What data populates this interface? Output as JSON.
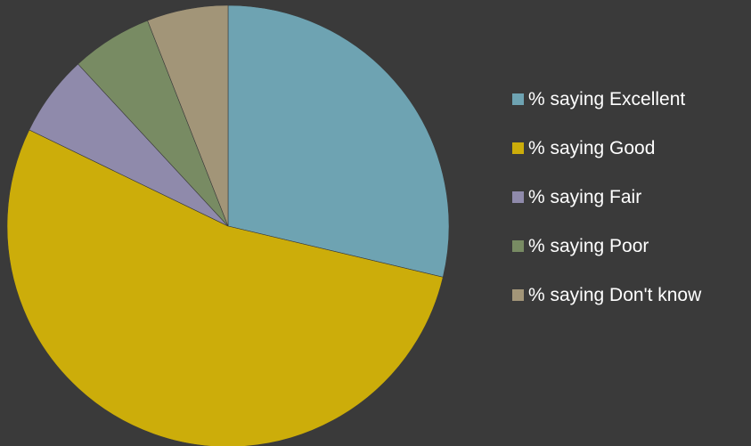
{
  "chart_data": {
    "type": "pie",
    "title": "",
    "start_angle_deg": 0,
    "direction": "clockwise",
    "legend_position": "right",
    "series": [
      {
        "name": "% saying Excellent",
        "value": 29,
        "color": "#6ea3b2"
      },
      {
        "name": "% saying Good",
        "value": 54,
        "color": "#ccad0a"
      },
      {
        "name": "% saying Fair",
        "value": 6,
        "color": "#8f8aab"
      },
      {
        "name": "% saying Poor",
        "value": 6,
        "color": "#788b63"
      },
      {
        "name": "% saying Don't know",
        "value": 6,
        "color": "#a29578"
      }
    ]
  }
}
